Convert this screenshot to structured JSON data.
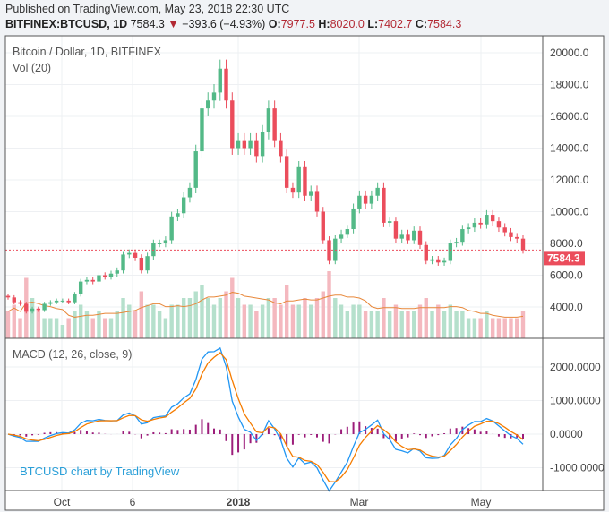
{
  "header": {
    "published": "Published on TradingView.com, May 23, 2018 22:30 UTC",
    "symbol": "BITFINEX:BTCUSD, 1D",
    "last": "7584.3",
    "change": "−393.6 (−4.93%)",
    "o_label": "O:",
    "o": "7977.5",
    "h_label": "H:",
    "h": "8020.0",
    "l_label": "L:",
    "l": "7402.7",
    "c_label": "C:",
    "c": "7584.3"
  },
  "legend": {
    "title": "Bitcoin / Dollar, 1D, BITFINEX",
    "vol": "Vol (20)",
    "macd": "MACD (12, 26, close, 9)"
  },
  "watermark": "BTCUSD chart by TradingView",
  "colors": {
    "up": "#53b987",
    "down": "#eb4d5c",
    "macd": "#2196f3",
    "signal": "#f57c00",
    "hist": "#9c1d7a",
    "volma": "#e8883a"
  },
  "chart_data": {
    "type": "candlestick",
    "price_axis": {
      "ticks": [
        "20000.0",
        "18000.0",
        "16000.0",
        "14000.0",
        "12000.0",
        "10000.0",
        "8000.0",
        "6000.0",
        "4000.0"
      ],
      "range": [
        3000,
        21000
      ],
      "last_label": "7584.3"
    },
    "macd_axis": {
      "ticks": [
        "2000.0000",
        "1000.0000",
        "0.0000",
        "-1000.0000"
      ],
      "range": [
        -1700,
        2900
      ]
    },
    "time_axis": [
      "Oct",
      "6",
      "2018",
      "Mar",
      "May"
    ],
    "open_first": 4700,
    "closes": [
      4600,
      4300,
      4200,
      3700,
      3900,
      3800,
      4200,
      4300,
      4400,
      4400,
      4300,
      4800,
      5600,
      5700,
      5600,
      6000,
      5900,
      6100,
      6300,
      7300,
      7400,
      7100,
      6300,
      7200,
      8000,
      8000,
      8200,
      9700,
      9900,
      10900,
      11500,
      13800,
      16500,
      17000,
      17500,
      19000,
      17000,
      14000,
      14500,
      14000,
      14500,
      13500,
      15000,
      16500,
      14500,
      13500,
      11500,
      11200,
      12800,
      11000,
      11300,
      10000,
      8200,
      6900,
      8300,
      8600,
      8900,
      10200,
      11000,
      10500,
      11000,
      11500,
      9300,
      9400,
      8300,
      8600,
      8200,
      8800,
      7900,
      6900,
      7000,
      6800,
      6900,
      8000,
      8100,
      8900,
      9000,
      9300,
      9200,
      9800,
      9400,
      9000,
      8700,
      8400,
      8300,
      7584.3
    ],
    "volumes": [
      0.4,
      0.5,
      0.3,
      0.9,
      0.6,
      0.4,
      0.3,
      0.3,
      0.3,
      0.2,
      0.3,
      0.4,
      0.5,
      0.4,
      0.3,
      0.4,
      0.3,
      0.3,
      0.4,
      0.6,
      0.5,
      0.4,
      0.7,
      0.5,
      0.5,
      0.4,
      0.3,
      0.5,
      0.5,
      0.6,
      0.6,
      0.7,
      0.8,
      0.6,
      0.5,
      0.6,
      0.7,
      0.9,
      0.6,
      0.5,
      0.5,
      0.4,
      0.5,
      0.6,
      0.6,
      0.5,
      0.8,
      0.5,
      0.5,
      0.6,
      0.5,
      0.6,
      0.7,
      1.0,
      0.6,
      0.5,
      0.4,
      0.5,
      0.5,
      0.4,
      0.4,
      0.4,
      0.6,
      0.4,
      0.5,
      0.4,
      0.4,
      0.4,
      0.5,
      0.6,
      0.4,
      0.5,
      0.4,
      0.5,
      0.4,
      0.4,
      0.3,
      0.3,
      0.3,
      0.4,
      0.3,
      0.3,
      0.3,
      0.3,
      0.3,
      0.4
    ]
  }
}
